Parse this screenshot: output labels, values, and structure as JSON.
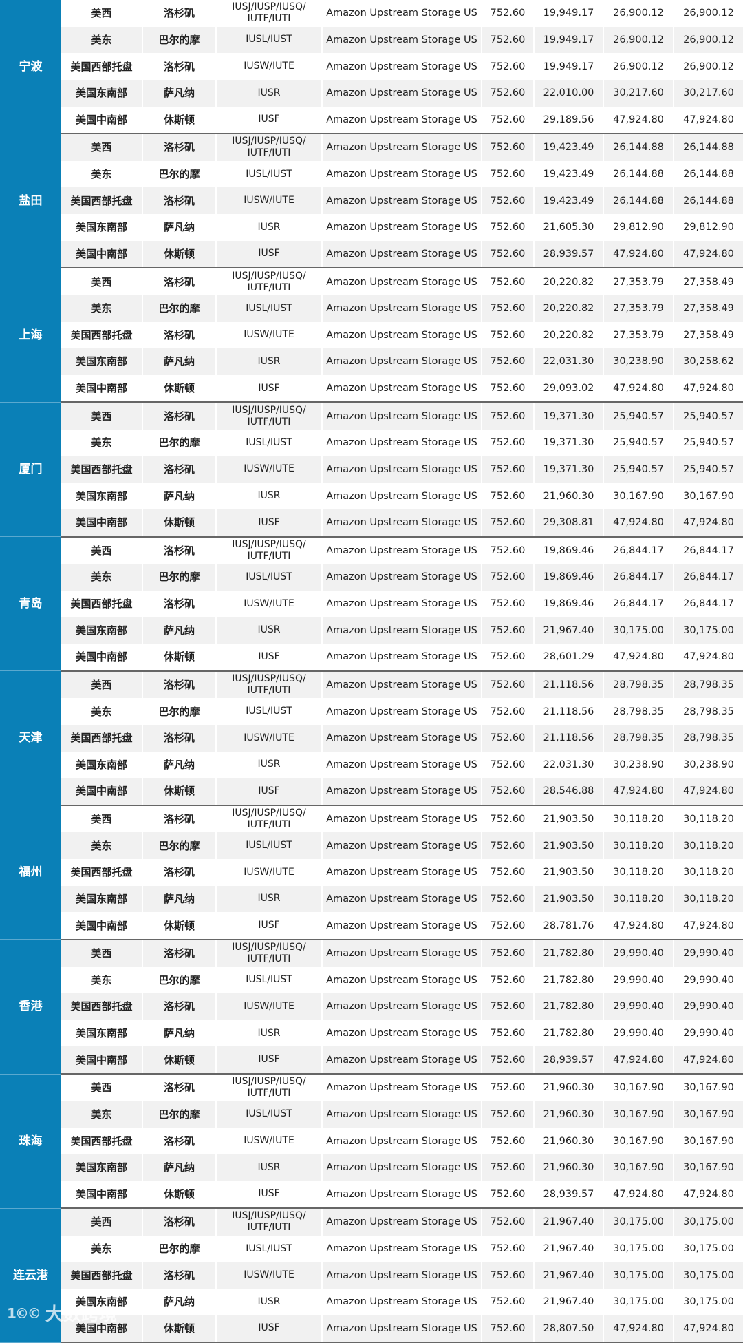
{
  "table": {
    "warehouse": "Amazon Upstream Storage US",
    "groups": [
      {
        "port": "宁波",
        "rows": [
          [
            "美西",
            "洛杉矶",
            "IUSJ/IUSP/IUSQ/ IUTF/IUTI",
            "Amazon Upstream Storage US",
            "752.60",
            "19,949.17",
            "26,900.12",
            "26,900.12"
          ],
          [
            "美东",
            "巴尔的摩",
            "IUSL/IUST",
            "Amazon Upstream Storage US",
            "752.60",
            "19,949.17",
            "26,900.12",
            "26,900.12"
          ],
          [
            "美国西部托盘",
            "洛杉矶",
            "IUSW/IUTE",
            "Amazon Upstream Storage US",
            "752.60",
            "19,949.17",
            "26,900.12",
            "26,900.12"
          ],
          [
            "美国东南部",
            "萨凡纳",
            "IUSR",
            "Amazon Upstream Storage US",
            "752.60",
            "22,010.00",
            "30,217.60",
            "30,217.60"
          ],
          [
            "美国中南部",
            "休斯顿",
            "IUSF",
            "Amazon Upstream Storage US",
            "752.60",
            "29,189.56",
            "47,924.80",
            "47,924.80"
          ]
        ]
      },
      {
        "port": "盐田",
        "rows": [
          [
            "美西",
            "洛杉矶",
            "IUSJ/IUSP/IUSQ/ IUTF/IUTI",
            "Amazon Upstream Storage US",
            "752.60",
            "19,423.49",
            "26,144.88",
            "26,144.88"
          ],
          [
            "美东",
            "巴尔的摩",
            "IUSL/IUST",
            "Amazon Upstream Storage US",
            "752.60",
            "19,423.49",
            "26,144.88",
            "26,144.88"
          ],
          [
            "美国西部托盘",
            "洛杉矶",
            "IUSW/IUTE",
            "Amazon Upstream Storage US",
            "752.60",
            "19,423.49",
            "26,144.88",
            "26,144.88"
          ],
          [
            "美国东南部",
            "萨凡纳",
            "IUSR",
            "Amazon Upstream Storage US",
            "752.60",
            "21,605.30",
            "29,812.90",
            "29,812.90"
          ],
          [
            "美国中南部",
            "休斯顿",
            "IUSF",
            "Amazon Upstream Storage US",
            "752.60",
            "28,939.57",
            "47,924.80",
            "47,924.80"
          ]
        ]
      },
      {
        "port": "上海",
        "rows": [
          [
            "美西",
            "洛杉矶",
            "IUSJ/IUSP/IUSQ/ IUTF/IUTI",
            "Amazon Upstream Storage US",
            "752.60",
            "20,220.82",
            "27,353.79",
            "27,358.49"
          ],
          [
            "美东",
            "巴尔的摩",
            "IUSL/IUST",
            "Amazon Upstream Storage US",
            "752.60",
            "20,220.82",
            "27,353.79",
            "27,358.49"
          ],
          [
            "美国西部托盘",
            "洛杉矶",
            "IUSW/IUTE",
            "Amazon Upstream Storage US",
            "752.60",
            "20,220.82",
            "27,353.79",
            "27,358.49"
          ],
          [
            "美国东南部",
            "萨凡纳",
            "IUSR",
            "Amazon Upstream Storage US",
            "752.60",
            "22,031.30",
            "30,238.90",
            "30,258.62"
          ],
          [
            "美国中南部",
            "休斯顿",
            "IUSF",
            "Amazon Upstream Storage US",
            "752.60",
            "29,093.02",
            "47,924.80",
            "47,924.80"
          ]
        ]
      },
      {
        "port": "厦门",
        "rows": [
          [
            "美西",
            "洛杉矶",
            "IUSJ/IUSP/IUSQ/ IUTF/IUTI",
            "Amazon Upstream Storage US",
            "752.60",
            "19,371.30",
            "25,940.57",
            "25,940.57"
          ],
          [
            "美东",
            "巴尔的摩",
            "IUSL/IUST",
            "Amazon Upstream Storage US",
            "752.60",
            "19,371.30",
            "25,940.57",
            "25,940.57"
          ],
          [
            "美国西部托盘",
            "洛杉矶",
            "IUSW/IUTE",
            "Amazon Upstream Storage US",
            "752.60",
            "19,371.30",
            "25,940.57",
            "25,940.57"
          ],
          [
            "美国东南部",
            "萨凡纳",
            "IUSR",
            "Amazon Upstream Storage US",
            "752.60",
            "21,960.30",
            "30,167.90",
            "30,167.90"
          ],
          [
            "美国中南部",
            "休斯顿",
            "IUSF",
            "Amazon Upstream Storage US",
            "752.60",
            "29,308.81",
            "47,924.80",
            "47,924.80"
          ]
        ]
      },
      {
        "port": "青岛",
        "rows": [
          [
            "美西",
            "洛杉矶",
            "IUSJ/IUSP/IUSQ/ IUTF/IUTI",
            "Amazon Upstream Storage US",
            "752.60",
            "19,869.46",
            "26,844.17",
            "26,844.17"
          ],
          [
            "美东",
            "巴尔的摩",
            "IUSL/IUST",
            "Amazon Upstream Storage US",
            "752.60",
            "19,869.46",
            "26,844.17",
            "26,844.17"
          ],
          [
            "美国西部托盘",
            "洛杉矶",
            "IUSW/IUTE",
            "Amazon Upstream Storage US",
            "752.60",
            "19,869.46",
            "26,844.17",
            "26,844.17"
          ],
          [
            "美国东南部",
            "萨凡纳",
            "IUSR",
            "Amazon Upstream Storage US",
            "752.60",
            "21,967.40",
            "30,175.00",
            "30,175.00"
          ],
          [
            "美国中南部",
            "休斯顿",
            "IUSF",
            "Amazon Upstream Storage US",
            "752.60",
            "28,601.29",
            "47,924.80",
            "47,924.80"
          ]
        ]
      },
      {
        "port": "天津",
        "rows": [
          [
            "美西",
            "洛杉矶",
            "IUSJ/IUSP/IUSQ/ IUTF/IUTI",
            "Amazon Upstream Storage US",
            "752.60",
            "21,118.56",
            "28,798.35",
            "28,798.35"
          ],
          [
            "美东",
            "巴尔的摩",
            "IUSL/IUST",
            "Amazon Upstream Storage US",
            "752.60",
            "21,118.56",
            "28,798.35",
            "28,798.35"
          ],
          [
            "美国西部托盘",
            "洛杉矶",
            "IUSW/IUTE",
            "Amazon Upstream Storage US",
            "752.60",
            "21,118.56",
            "28,798.35",
            "28,798.35"
          ],
          [
            "美国东南部",
            "萨凡纳",
            "IUSR",
            "Amazon Upstream Storage US",
            "752.60",
            "22,031.30",
            "30,238.90",
            "30,238.90"
          ],
          [
            "美国中南部",
            "休斯顿",
            "IUSF",
            "Amazon Upstream Storage US",
            "752.60",
            "28,546.88",
            "47,924.80",
            "47,924.80"
          ]
        ]
      },
      {
        "port": "福州",
        "rows": [
          [
            "美西",
            "洛杉矶",
            "IUSJ/IUSP/IUSQ/ IUTF/IUTI",
            "Amazon Upstream Storage US",
            "752.60",
            "21,903.50",
            "30,118.20",
            "30,118.20"
          ],
          [
            "美东",
            "巴尔的摩",
            "IUSL/IUST",
            "Amazon Upstream Storage US",
            "752.60",
            "21,903.50",
            "30,118.20",
            "30,118.20"
          ],
          [
            "美国西部托盘",
            "洛杉矶",
            "IUSW/IUTE",
            "Amazon Upstream Storage US",
            "752.60",
            "21,903.50",
            "30,118.20",
            "30,118.20"
          ],
          [
            "美国东南部",
            "萨凡纳",
            "IUSR",
            "Amazon Upstream Storage US",
            "752.60",
            "21,903.50",
            "30,118.20",
            "30,118.20"
          ],
          [
            "美国中南部",
            "休斯顿",
            "IUSF",
            "Amazon Upstream Storage US",
            "752.60",
            "28,781.76",
            "47,924.80",
            "47,924.80"
          ]
        ]
      },
      {
        "port": "香港",
        "rows": [
          [
            "美西",
            "洛杉矶",
            "IUSJ/IUSP/IUSQ/ IUTF/IUTI",
            "Amazon Upstream Storage US",
            "752.60",
            "21,782.80",
            "29,990.40",
            "29,990.40"
          ],
          [
            "美东",
            "巴尔的摩",
            "IUSL/IUST",
            "Amazon Upstream Storage US",
            "752.60",
            "21,782.80",
            "29,990.40",
            "29,990.40"
          ],
          [
            "美国西部托盘",
            "洛杉矶",
            "IUSW/IUTE",
            "Amazon Upstream Storage US",
            "752.60",
            "21,782.80",
            "29,990.40",
            "29,990.40"
          ],
          [
            "美国东南部",
            "萨凡纳",
            "IUSR",
            "Amazon Upstream Storage US",
            "752.60",
            "21,782.80",
            "29,990.40",
            "29,990.40"
          ],
          [
            "美国中南部",
            "休斯顿",
            "IUSF",
            "Amazon Upstream Storage US",
            "752.60",
            "28,939.57",
            "47,924.80",
            "47,924.80"
          ]
        ]
      },
      {
        "port": "珠海",
        "rows": [
          [
            "美西",
            "洛杉矶",
            "IUSJ/IUSP/IUSQ/ IUTF/IUTI",
            "Amazon Upstream Storage US",
            "752.60",
            "21,960.30",
            "30,167.90",
            "30,167.90"
          ],
          [
            "美东",
            "巴尔的摩",
            "IUSL/IUST",
            "Amazon Upstream Storage US",
            "752.60",
            "21,960.30",
            "30,167.90",
            "30,167.90"
          ],
          [
            "美国西部托盘",
            "洛杉矶",
            "IUSW/IUTE",
            "Amazon Upstream Storage US",
            "752.60",
            "21,960.30",
            "30,167.90",
            "30,167.90"
          ],
          [
            "美国东南部",
            "萨凡纳",
            "IUSR",
            "Amazon Upstream Storage US",
            "752.60",
            "21,960.30",
            "30,167.90",
            "30,167.90"
          ],
          [
            "美国中南部",
            "休斯顿",
            "IUSF",
            "Amazon Upstream Storage US",
            "752.60",
            "28,939.57",
            "47,924.80",
            "47,924.80"
          ]
        ]
      },
      {
        "port": "连云港",
        "rows": [
          [
            "美西",
            "洛杉矶",
            "IUSJ/IUSP/IUSQ/ IUTF/IUTI",
            "Amazon Upstream Storage US",
            "752.60",
            "21,967.40",
            "30,175.00",
            "30,175.00"
          ],
          [
            "美东",
            "巴尔的摩",
            "IUSL/IUST",
            "Amazon Upstream Storage US",
            "752.60",
            "21,967.40",
            "30,175.00",
            "30,175.00"
          ],
          [
            "美国西部托盘",
            "洛杉矶",
            "IUSW/IUTE",
            "Amazon Upstream Storage US",
            "752.60",
            "21,967.40",
            "30,175.00",
            "30,175.00"
          ],
          [
            "美国东南部",
            "萨凡纳",
            "IUSR",
            "Amazon Upstream Storage US",
            "752.60",
            "21,967.40",
            "30,175.00",
            "30,175.00"
          ],
          [
            "美国中南部",
            "休斯顿",
            "IUSF",
            "Amazon Upstream Storage US",
            "752.60",
            "28,807.50",
            "47,924.80",
            "47,924.80"
          ]
        ]
      }
    ]
  },
  "watermark": {
    "logo": "1©©",
    "text": "大数跨境"
  },
  "colors": {
    "port_bg": "#0a80b7",
    "stripe": "#f1f1f1",
    "group_border": "#666666"
  }
}
